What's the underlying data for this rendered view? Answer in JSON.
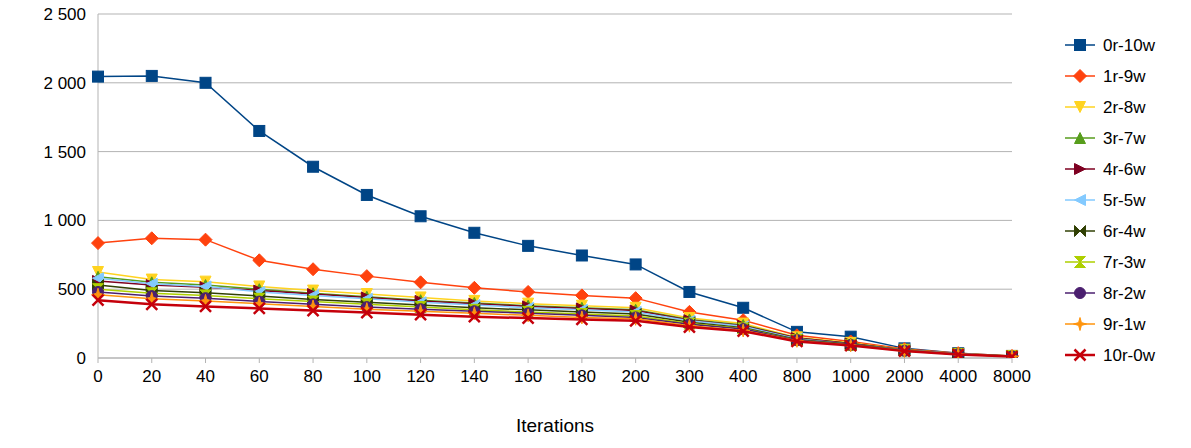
{
  "chart_data": {
    "type": "line",
    "x_label": "Iterations",
    "categories": [
      "0",
      "20",
      "40",
      "60",
      "80",
      "100",
      "120",
      "140",
      "160",
      "180",
      "200",
      "300",
      "400",
      "800",
      "1000",
      "2000",
      "4000",
      "8000"
    ],
    "ylim": [
      0,
      2500
    ],
    "yticks": [
      {
        "value": 0,
        "label": "0"
      },
      {
        "value": 500,
        "label": "500"
      },
      {
        "value": 1000,
        "label": "1 000"
      },
      {
        "value": 1500,
        "label": "1 500"
      },
      {
        "value": 2000,
        "label": "2 000"
      },
      {
        "value": 2500,
        "label": "2 500"
      }
    ],
    "grid": true,
    "legend": "right",
    "series": [
      {
        "name": "0r-10w",
        "color": "#004586",
        "marker": "square",
        "values": [
          2045,
          2050,
          2000,
          1650,
          1390,
          1185,
          1030,
          910,
          815,
          745,
          680,
          480,
          365,
          190,
          155,
          70,
          35,
          15
        ]
      },
      {
        "name": "1r-9w",
        "color": "#ff420e",
        "marker": "diamond",
        "values": [
          835,
          870,
          860,
          710,
          645,
          595,
          550,
          510,
          480,
          455,
          435,
          335,
          275,
          165,
          120,
          65,
          35,
          15
        ]
      },
      {
        "name": "2r-8w",
        "color": "#ffd320",
        "marker": "triangle-down",
        "values": [
          625,
          570,
          555,
          520,
          490,
          465,
          440,
          415,
          395,
          380,
          365,
          290,
          250,
          150,
          110,
          60,
          30,
          15
        ]
      },
      {
        "name": "3r-7w",
        "color": "#579d1c",
        "marker": "triangle",
        "values": [
          590,
          550,
          530,
          500,
          470,
          445,
          420,
          400,
          380,
          365,
          350,
          280,
          240,
          145,
          105,
          60,
          30,
          12
        ]
      },
      {
        "name": "4r-6w",
        "color": "#7e0021",
        "marker": "triangle-right",
        "values": [
          560,
          530,
          515,
          490,
          465,
          440,
          415,
          395,
          375,
          360,
          345,
          275,
          235,
          145,
          105,
          58,
          30,
          12
        ]
      },
      {
        "name": "5r-5w",
        "color": "#83caff",
        "marker": "triangle-left",
        "values": [
          580,
          540,
          520,
          480,
          455,
          430,
          405,
          385,
          365,
          350,
          335,
          270,
          230,
          140,
          100,
          57,
          30,
          12
        ]
      },
      {
        "name": "6r-4w",
        "color": "#314004",
        "marker": "bowtie",
        "values": [
          530,
          490,
          475,
          450,
          425,
          405,
          385,
          365,
          350,
          335,
          320,
          260,
          220,
          135,
          100,
          55,
          28,
          12
        ]
      },
      {
        "name": "7r-3w",
        "color": "#aecf00",
        "marker": "hourglass",
        "values": [
          500,
          470,
          455,
          430,
          410,
          390,
          370,
          350,
          335,
          320,
          305,
          250,
          215,
          130,
          95,
          55,
          28,
          12
        ]
      },
      {
        "name": "8r-2w",
        "color": "#4b1f6f",
        "marker": "circle",
        "values": [
          480,
          450,
          435,
          410,
          390,
          370,
          355,
          340,
          325,
          310,
          295,
          245,
          210,
          130,
          95,
          52,
          27,
          12
        ]
      },
      {
        "name": "9r-1w",
        "color": "#ff950e",
        "marker": "star",
        "values": [
          460,
          430,
          415,
          395,
          375,
          355,
          340,
          325,
          310,
          295,
          285,
          235,
          200,
          125,
          92,
          50,
          27,
          11
        ]
      },
      {
        "name": "10r-0w",
        "color": "#c5000b",
        "marker": "x",
        "values": [
          420,
          390,
          375,
          360,
          345,
          330,
          315,
          300,
          290,
          280,
          270,
          225,
          195,
          120,
          90,
          50,
          25,
          10
        ]
      }
    ]
  }
}
